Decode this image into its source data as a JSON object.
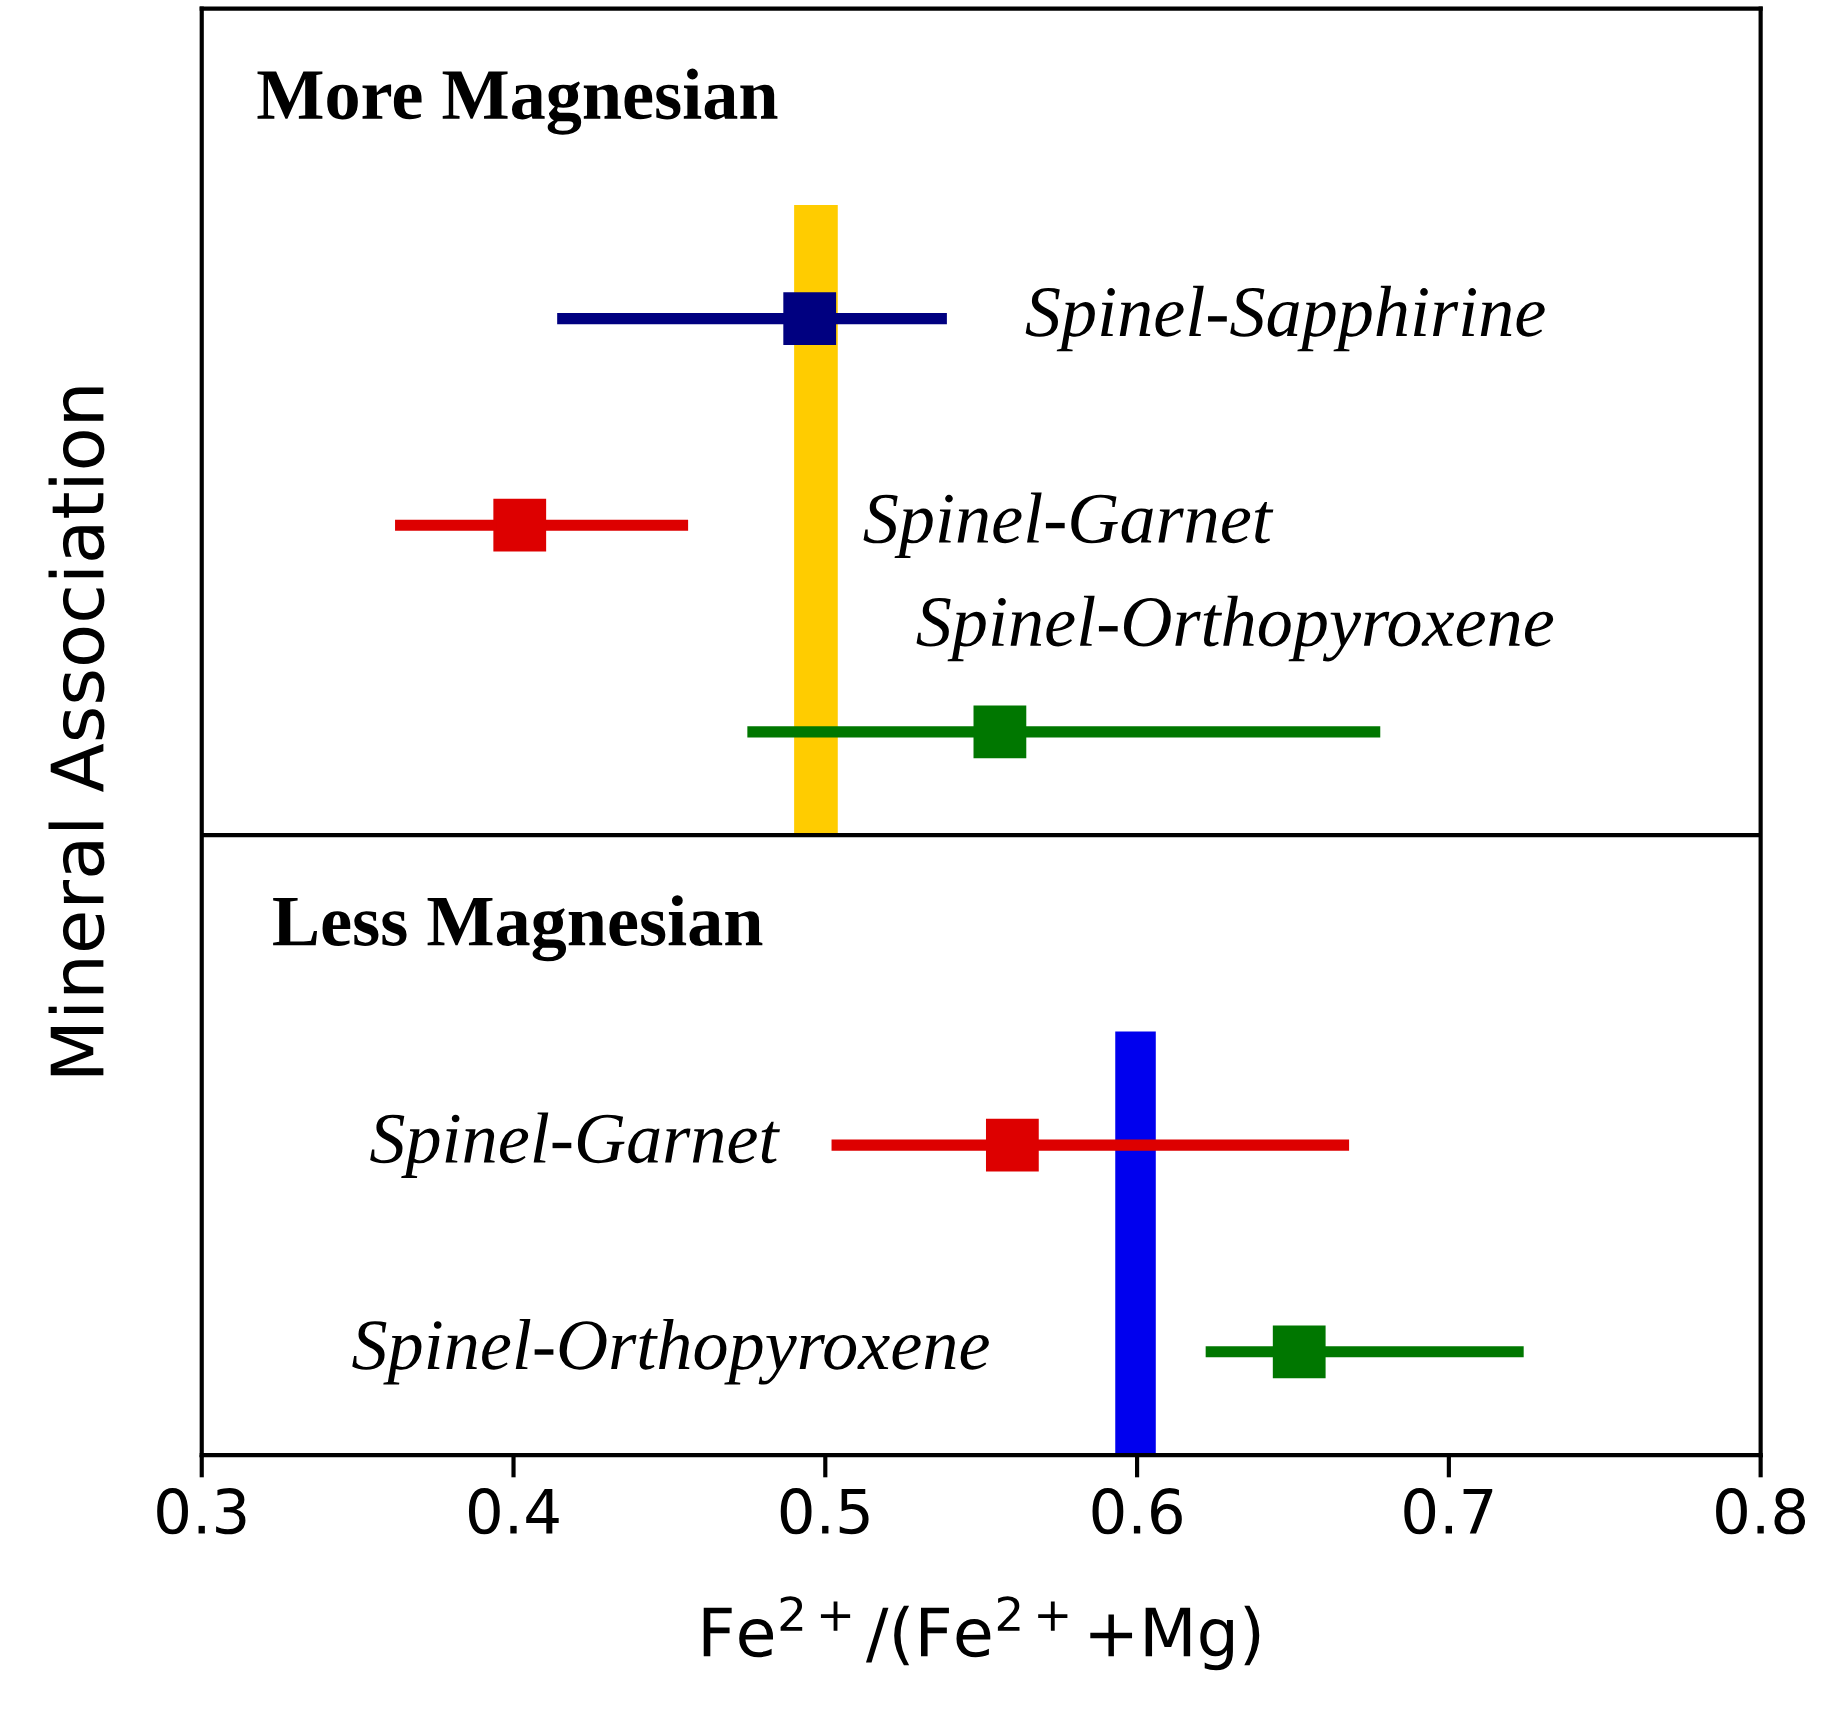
{
  "chart_data": {
    "type": "scatter",
    "orientation": "horizontal",
    "xlabel": "Fe$^{2+}$/(Fe$^{2+}$+Mg)",
    "ylabel": "Mineral Association",
    "categories": [
      null,
      null,
      null,
      null,
      null,
      null,
      null
    ],
    "xlim": [
      0.3,
      0.8
    ],
    "xticks": [
      0.3,
      0.4,
      0.5,
      0.6,
      0.7,
      0.8
    ],
    "marker": "square",
    "grid": false,
    "legend": false,
    "annotations": [
      "More Magnesian",
      "Less Magnesian"
    ],
    "series": [
      {
        "name": "Spinel-Sapphirine",
        "color": "#000080",
        "values": [
          null,
          0.495,
          null,
          null,
          null,
          null,
          null
        ],
        "errors": [
          null,
          [
            0.414,
            0.539
          ],
          null,
          null,
          null,
          null,
          null
        ]
      },
      {
        "name": "Spinel-Garnet",
        "color": "#dd0000",
        "values": [
          null,
          null,
          0.402,
          null,
          null,
          0.56,
          null
        ],
        "errors": [
          null,
          null,
          [
            0.362,
            0.456
          ],
          null,
          null,
          [
            0.502,
            0.668
          ],
          null
        ]
      },
      {
        "name": "Spinel-Orthopyroxene",
        "color": "#007700",
        "values": [
          null,
          null,
          null,
          0.556,
          null,
          null,
          0.652
        ],
        "errors": [
          null,
          null,
          null,
          [
            0.475,
            0.678
          ],
          null,
          null,
          [
            0.622,
            0.724
          ]
        ]
      }
    ],
    "bands": [
      {
        "axis": "x",
        "from": 0.49,
        "to": 0.504,
        "color": "#ffcc00"
      },
      {
        "axis": "x",
        "from": 0.593,
        "to": 0.606,
        "color": "#0000ee"
      }
    ]
  }
}
